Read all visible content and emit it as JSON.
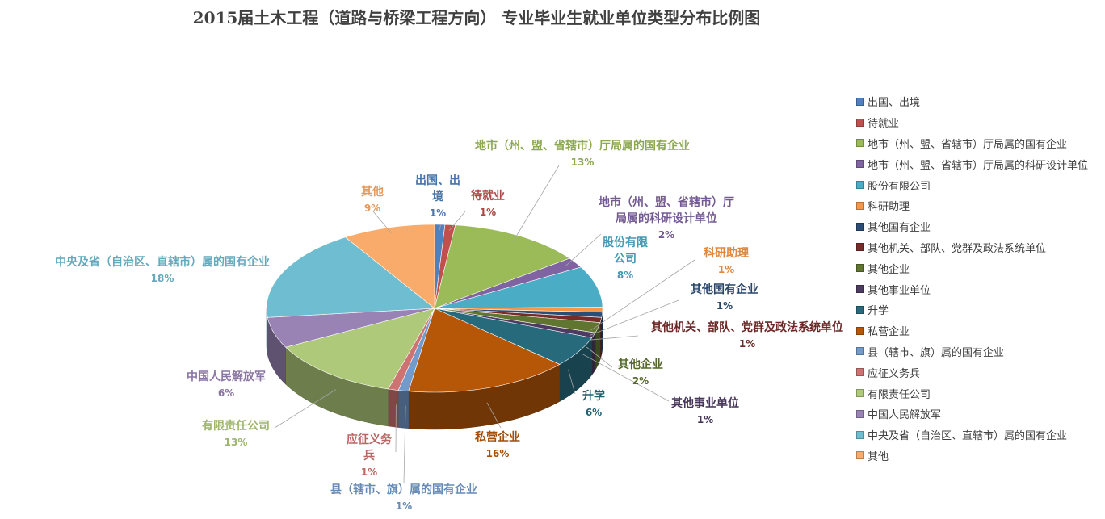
{
  "chart_data": {
    "type": "pie",
    "variant": "3d-pie",
    "title": "2015届土木工程（道路与桥梁工程方向） 专业毕业生就业单位类型分布比例图",
    "legend_position": "right",
    "slices": [
      {
        "name": "出国、出境",
        "value": 1,
        "label_lines": [
          "出国、出",
          "境"
        ],
        "pct_label": "1%",
        "color": "#4f81bd"
      },
      {
        "name": "待就业",
        "value": 1,
        "label_lines": [
          "待就业"
        ],
        "pct_label": "1%",
        "color": "#c0504d"
      },
      {
        "name": "地市（州、盟、省辖市）厅局属的国有企业",
        "value": 13,
        "label_lines": [
          "地市（州、盟、省辖市）厅局属的国有企业"
        ],
        "pct_label": "13%",
        "color": "#9bbb59"
      },
      {
        "name": "地市（州、盟、省辖市）厅局属的科研设计单位",
        "value": 2,
        "label_lines": [
          "地市（州、盟、省辖市）厅",
          "局属的科研设计单位"
        ],
        "pct_label": "2%",
        "color": "#8064a2"
      },
      {
        "name": "股份有限公司",
        "value": 8,
        "label_lines": [
          "股份有限",
          "公司"
        ],
        "pct_label": "8%",
        "color": "#4bacc6"
      },
      {
        "name": "科研助理",
        "value": 1,
        "label_lines": [
          "科研助理"
        ],
        "pct_label": "1%",
        "color": "#f79646"
      },
      {
        "name": "其他国有企业",
        "value": 1,
        "label_lines": [
          "其他国有企业"
        ],
        "pct_label": "1%",
        "color": "#2c4d75"
      },
      {
        "name": "其他机关、部队、党群及政法系统单位",
        "value": 1,
        "label_lines": [
          "其他机关、部队、党群及政法系统单位"
        ],
        "pct_label": "1%",
        "color": "#772c2a"
      },
      {
        "name": "其他企业",
        "value": 2,
        "label_lines": [
          "其他企业"
        ],
        "pct_label": "2%",
        "color": "#5f7530"
      },
      {
        "name": "其他事业单位",
        "value": 1,
        "label_lines": [
          "其他事业单位"
        ],
        "pct_label": "1%",
        "color": "#4d3b62"
      },
      {
        "name": "升学",
        "value": 6,
        "label_lines": [
          "升学"
        ],
        "pct_label": "6%",
        "color": "#276a7c"
      },
      {
        "name": "私营企业",
        "value": 16,
        "label_lines": [
          "私营企业"
        ],
        "pct_label": "16%",
        "color": "#b65708"
      },
      {
        "name": "县（辖市、旗）属的国有企业",
        "value": 1,
        "label_lines": [
          "县（辖市、旗）属的国有企业"
        ],
        "pct_label": "1%",
        "color": "#729aca"
      },
      {
        "name": "应征义务兵",
        "value": 1,
        "label_lines": [
          "应征义务",
          "兵"
        ],
        "pct_label": "1%",
        "color": "#cd7371"
      },
      {
        "name": "有限责任公司",
        "value": 13,
        "label_lines": [
          "有限责任公司"
        ],
        "pct_label": "13%",
        "color": "#afc97a"
      },
      {
        "name": "中国人民解放军",
        "value": 6,
        "label_lines": [
          "中国人民解放军"
        ],
        "pct_label": "6%",
        "color": "#9983b5"
      },
      {
        "name": "中央及省（自治区、直辖市）属的国有企业",
        "value": 18,
        "label_lines": [
          "中央及省（自治区、直辖市）属的国有企业"
        ],
        "pct_label": "18%",
        "color": "#6fbdd1"
      },
      {
        "name": "其他",
        "value": 9,
        "label_lines": [
          "其他"
        ],
        "pct_label": "9%",
        "color": "#f9ab6b"
      }
    ]
  }
}
